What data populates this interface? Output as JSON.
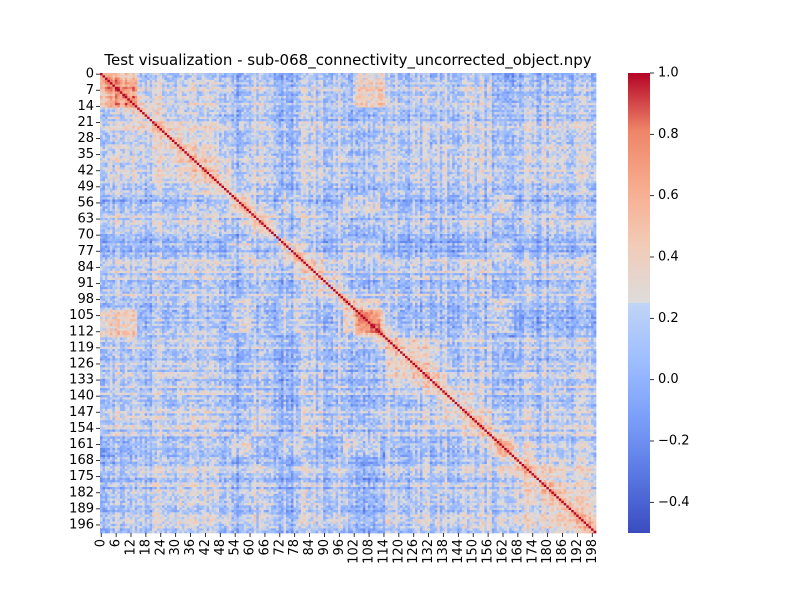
{
  "chart_data": {
    "type": "heatmap",
    "title": "Test visualization - sub-068_connectivity_uncorrected_object.npy",
    "n": 200,
    "x_tick_labels": [
      "0",
      "6",
      "12",
      "18",
      "24",
      "30",
      "36",
      "42",
      "48",
      "54",
      "60",
      "66",
      "72",
      "78",
      "84",
      "90",
      "96",
      "102",
      "108",
      "114",
      "120",
      "126",
      "132",
      "138",
      "144",
      "150",
      "156",
      "162",
      "168",
      "174",
      "180",
      "186",
      "192",
      "198"
    ],
    "y_tick_labels": [
      "0",
      "7",
      "14",
      "21",
      "28",
      "35",
      "42",
      "49",
      "56",
      "63",
      "70",
      "77",
      "84",
      "91",
      "98",
      "105",
      "112",
      "119",
      "126",
      "133",
      "140",
      "147",
      "154",
      "161",
      "168",
      "175",
      "182",
      "189",
      "196"
    ],
    "colorbar": {
      "colormap": "coolwarm",
      "vmin": -0.5,
      "vmax": 1.0,
      "ticks": [
        "1.0",
        "0.8",
        "0.6",
        "0.4",
        "0.2",
        "0.0",
        "−0.2",
        "−0.4"
      ]
    },
    "diagonal_value": 1.0,
    "notes_on_structure": "Symmetric correlation matrix; diagonal = 1.0; warm blocks among nodes 0-14 and 104-114, cooler vertical/horizontal bands near 53-60, 72-80, 98-112, 158-166"
  }
}
